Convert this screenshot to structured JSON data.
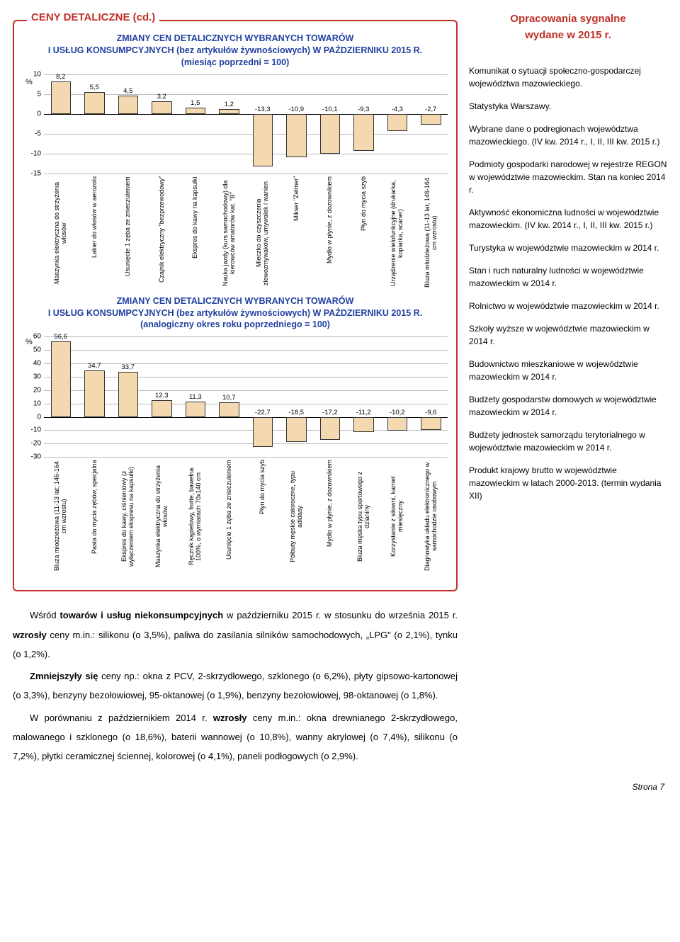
{
  "box": {
    "title": "CENY DETALICZNE (cd.)"
  },
  "chart1": {
    "type": "bar",
    "title_line1": "ZMIANY CEN DETALICZNYCH WYBRANYCH TOWARÓW",
    "title_line2": "I USŁUG KONSUMPCYJNYCH (bez artykułów żywnościowych) W PAŹDZIERNIKU 2015 R.",
    "title_line3": "(miesiąc poprzedni = 100)",
    "pct_sign": "%",
    "ylim": [
      -15,
      10
    ],
    "ytick_step": 5,
    "bar_fill": "#f4d9b0",
    "neg_fill": "#f4d9b0",
    "categories": [
      "Maszynka elektryczna do strzyżenia włosów",
      "Lakier do włosów w aerozolu",
      "Usunięcie 1 zęba ze znieczuleniem",
      "Czajnik elektryczny \"bezprzewodowy\"",
      "Ekspres do kawy na kapsułki",
      "Nauka jazdy (kurs samochodowy) dla kierowców amatorów kat. \"B\"",
      "Mleczko do czyszczenia zlewozmywaków, umywalek i wanien",
      "Mikser \"Zelmer\"",
      "Mydło w płynie, z dozownikiem",
      "Płyn do mycia szyb",
      "Urządzenie wielofunkcyjne (drukarka, kopiarka, scaner)",
      "Bluza młodzieżowa (11-13 lat; 146-164 cm wzrostu)"
    ],
    "values": [
      8.2,
      5.5,
      4.5,
      3.2,
      1.5,
      1.2,
      -13.3,
      -10.9,
      -10.1,
      -9.3,
      -4.3,
      -2.7
    ],
    "value_labels": [
      "8,2",
      "5,5",
      "4,5",
      "3,2",
      "1,5",
      "1,2",
      "-13,3",
      "-10,9",
      "-10,1",
      "-9,3",
      "-4,3",
      "-2,7"
    ]
  },
  "chart2": {
    "type": "bar",
    "title_line1": "ZMIANY CEN DETALICZNYCH WYBRANYCH TOWARÓW",
    "title_line2": "I USŁUG KONSUMPCYJNYCH (bez artykułów żywnościowych) W PAŹDZIERNIKU 2015 R.",
    "title_line3": "(analogiczny okres roku poprzedniego = 100)",
    "pct_sign": "%",
    "ylim": [
      -30,
      60
    ],
    "ytick_step": 10,
    "bar_fill": "#f4d9b0",
    "categories": [
      "Bluza młodzieżowa (11-13 lat; 146-164 cm wzrostu)",
      "Pasta do mycia zębów, specjalna",
      "Ekspres do kawy, ciśnieniowy (z wyłączeniem ekspresu na kapsułki)",
      "Maszynka elektryczna do strzyżenia włosów",
      "Ręcznik kąpielowy, frotte, bawełna 100%, o wymiarach 70x140 cm",
      "Usunięcie 1 zęba ze znieczuleniem",
      "Płyn do mycia szyb",
      "Półbuty męskie całoroczne, typu adidasy",
      "Mydło w płynie, z dozownikiem",
      "Bluza męska typu sportowego z dzianiny",
      "Korzystanie z siłowni, karnet miesięczny",
      "Diagnostyka układu elektronicznego w samochodzie osobowym"
    ],
    "values": [
      56.6,
      34.7,
      33.7,
      12.3,
      11.3,
      10.7,
      -22.7,
      -18.5,
      -17.2,
      -11.2,
      -10.2,
      -9.6
    ],
    "value_labels": [
      "56,6",
      "34,7",
      "33,7",
      "12,3",
      "11,3",
      "10,7",
      "-22,7",
      "-18,5",
      "-17,2",
      "-11,2",
      "-10,2",
      "-9,6"
    ]
  },
  "body": {
    "p1_a": "Wśród ",
    "p1_b": "towarów i usług niekonsumpcyjnych",
    "p1_c": " w październiku 2015 r. w stosunku do września 2015 r. ",
    "p1_d": "wzrosły",
    "p1_e": " ceny m.in.: silikonu (o 3,5%), paliwa do zasilania silników samochodowych, „LPG\" (o 2,1%), tynku (o 1,2%).",
    "p2_a": "Zmniejszyły się",
    "p2_b": " ceny np.: okna z PCV, 2-skrzydłowego, szklonego (o 6,2%), płyty gipsowo-kartonowej (o 3,3%), benzyny bezołowiowej, 95-oktanowej (o 1,9%), benzyny bezołowiowej, 98-oktanowej (o 1,8%).",
    "p3_a": "W porównaniu z październikiem 2014 r. ",
    "p3_b": "wzrosły",
    "p3_c": " ceny m.in.: okna drewnianego 2-skrzydłowego, malowanego i szklonego (o 18,6%), baterii wannowej (o 10,8%), wanny akrylowej (o 7,4%), silikonu (o 7,2%), płytki ceramicznej ściennej, kolorowej (o 4,1%), paneli podłogowych (o 2,9%)."
  },
  "right": {
    "header1": "Opracowania sygnalne",
    "header2": "wydane w 2015 r.",
    "items": [
      "Komunikat o sytuacji społeczno-gospodarczej województwa mazowieckiego.",
      "Statystyka Warszawy.",
      "Wybrane dane o podregionach województwa mazowieckiego. (IV kw. 2014 r., I, II, III kw. 2015 r.)",
      "Podmioty gospodarki narodowej w rejestrze REGON w województwie mazowieckim. Stan na koniec 2014 r.",
      "Aktywność ekonomiczna ludności w województwie mazowieckim. (IV kw. 2014 r., I, II, III kw. 2015 r.)",
      "Turystyka w województwie mazowieckim w 2014 r.",
      "Stan i ruch naturalny ludności w województwie mazowieckim w 2014 r.",
      "Rolnictwo w województwie mazowieckim w 2014 r.",
      "Szkoły wyższe w województwie mazowieckim w 2014 r.",
      "Budownictwo mieszkaniowe w województwie mazowieckim w 2014 r.",
      "Budżety gospodarstw domowych w województwie mazowieckim w 2014 r.",
      "Budżety jednostek samorządu terytorialnego w województwie mazowieckim w 2014 r.",
      "Produkt krajowy brutto w województwie mazowieckim w latach  2000-2013. (termin wydania XII)"
    ]
  },
  "footer": "Strona 7"
}
